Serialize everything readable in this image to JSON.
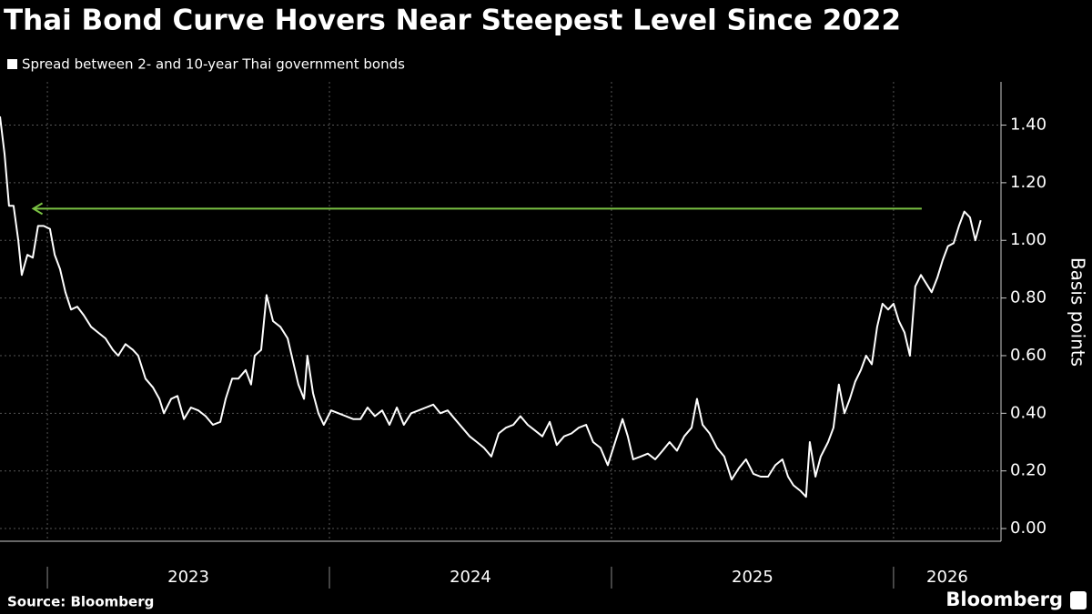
{
  "chart_data": {
    "type": "line",
    "title": "Thai Bond Curve Hovers Near Steepest Level Since 2022",
    "y_label": "Basis points",
    "source": "Source: Bloomberg",
    "brand": "Bloomberg",
    "series": [
      {
        "name": "Spread between 2- and 10-year Thai government bonds",
        "color": "#ffffff",
        "x": [
          2022.832,
          2022.848,
          2022.864,
          2022.88,
          2022.897,
          2022.909,
          2022.929,
          2022.948,
          2022.967,
          2022.987,
          2023.009,
          2023.026,
          2023.045,
          2023.064,
          2023.084,
          2023.106,
          2023.129,
          2023.155,
          2023.18,
          2023.206,
          2023.232,
          2023.251,
          2023.277,
          2023.303,
          2023.322,
          2023.348,
          2023.374,
          2023.397,
          2023.413,
          2023.439,
          2023.461,
          2023.484,
          2023.509,
          2023.535,
          2023.561,
          2023.587,
          2023.613,
          2023.632,
          2023.655,
          2023.677,
          2023.703,
          2023.722,
          2023.735,
          2023.758,
          2023.777,
          2023.8,
          2023.826,
          2023.852,
          2023.871,
          2023.89,
          2023.91,
          2023.922,
          2023.942,
          2023.961,
          2023.98,
          2024.006,
          2024.032,
          2024.058,
          2024.084,
          2024.11,
          2024.135,
          2024.161,
          2024.187,
          2024.213,
          2024.239,
          2024.264,
          2024.29,
          2024.316,
          2024.342,
          2024.368,
          2024.393,
          2024.419,
          2024.445,
          2024.471,
          2024.497,
          2024.523,
          2024.548,
          2024.574,
          2024.6,
          2024.626,
          2024.652,
          2024.677,
          2024.703,
          2024.729,
          2024.755,
          2024.781,
          2024.806,
          2024.832,
          2024.858,
          2024.884,
          2024.91,
          2024.935,
          2024.961,
          2024.987,
          2025.013,
          2025.039,
          2025.058,
          2025.077,
          2025.103,
          2025.129,
          2025.155,
          2025.181,
          2025.206,
          2025.232,
          2025.258,
          2025.284,
          2025.303,
          2025.323,
          2025.348,
          2025.374,
          2025.4,
          2025.426,
          2025.452,
          2025.477,
          2025.503,
          2025.529,
          2025.555,
          2025.581,
          2025.606,
          2025.626,
          2025.645,
          2025.671,
          2025.69,
          2025.703,
          2025.723,
          2025.742,
          2025.768,
          2025.787,
          2025.806,
          2025.826,
          2025.845,
          2025.864,
          2025.884,
          2025.903,
          2025.923,
          2025.942,
          2025.961,
          2025.981,
          2026.0,
          2026.019,
          2026.039,
          2026.058,
          2026.077,
          2026.097,
          2026.116,
          2026.135,
          2026.155,
          2026.174,
          2026.193,
          2026.213,
          2026.232,
          2026.251,
          2026.271,
          2026.29,
          2026.309
        ],
        "values": [
          1.43,
          1.3,
          1.12,
          1.12,
          1.0,
          0.88,
          0.95,
          0.94,
          1.05,
          1.05,
          1.04,
          0.95,
          0.9,
          0.82,
          0.76,
          0.77,
          0.74,
          0.7,
          0.68,
          0.66,
          0.62,
          0.6,
          0.64,
          0.62,
          0.6,
          0.52,
          0.49,
          0.45,
          0.4,
          0.45,
          0.46,
          0.38,
          0.42,
          0.41,
          0.39,
          0.36,
          0.37,
          0.45,
          0.52,
          0.52,
          0.55,
          0.5,
          0.6,
          0.62,
          0.81,
          0.72,
          0.7,
          0.66,
          0.58,
          0.5,
          0.45,
          0.6,
          0.47,
          0.4,
          0.36,
          0.41,
          0.4,
          0.39,
          0.38,
          0.38,
          0.42,
          0.39,
          0.41,
          0.36,
          0.42,
          0.36,
          0.4,
          0.41,
          0.42,
          0.43,
          0.4,
          0.41,
          0.38,
          0.35,
          0.32,
          0.3,
          0.28,
          0.25,
          0.33,
          0.35,
          0.36,
          0.39,
          0.36,
          0.34,
          0.32,
          0.37,
          0.29,
          0.32,
          0.33,
          0.35,
          0.36,
          0.3,
          0.28,
          0.22,
          0.3,
          0.38,
          0.32,
          0.24,
          0.25,
          0.26,
          0.24,
          0.27,
          0.3,
          0.27,
          0.32,
          0.35,
          0.45,
          0.36,
          0.33,
          0.28,
          0.25,
          0.17,
          0.21,
          0.24,
          0.19,
          0.18,
          0.18,
          0.22,
          0.24,
          0.18,
          0.15,
          0.13,
          0.11,
          0.3,
          0.18,
          0.25,
          0.3,
          0.35,
          0.5,
          0.4,
          0.45,
          0.51,
          0.55,
          0.6,
          0.57,
          0.7,
          0.78,
          0.76,
          0.78,
          0.72,
          0.68,
          0.6,
          0.84,
          0.88,
          0.85,
          0.82,
          0.87,
          0.93,
          0.98,
          0.99,
          1.05,
          1.1,
          1.08,
          1.0,
          1.07
        ]
      }
    ],
    "xlim": [
      2022.832,
      2026.381
    ],
    "xticks": [
      2023,
      2024,
      2025,
      2026
    ],
    "ylim": [
      -0.044,
      1.55
    ],
    "yticks": [
      {
        "value": 0,
        "label": "0.00"
      },
      {
        "value": 0.2,
        "label": "0.20"
      },
      {
        "value": 0.4,
        "label": "0.40"
      },
      {
        "value": 0.6,
        "label": "0.60"
      },
      {
        "value": 0.8,
        "label": "0.80"
      },
      {
        "value": 1,
        "label": "1.00"
      },
      {
        "value": 1.2,
        "label": "1.20"
      },
      {
        "value": 1.4,
        "label": "1.40"
      }
    ],
    "grid": true,
    "annotations": [
      {
        "type": "arrow",
        "x": [
          2026.1,
          2022.95
        ],
        "y": 1.11,
        "color": "#7ac143"
      }
    ]
  }
}
